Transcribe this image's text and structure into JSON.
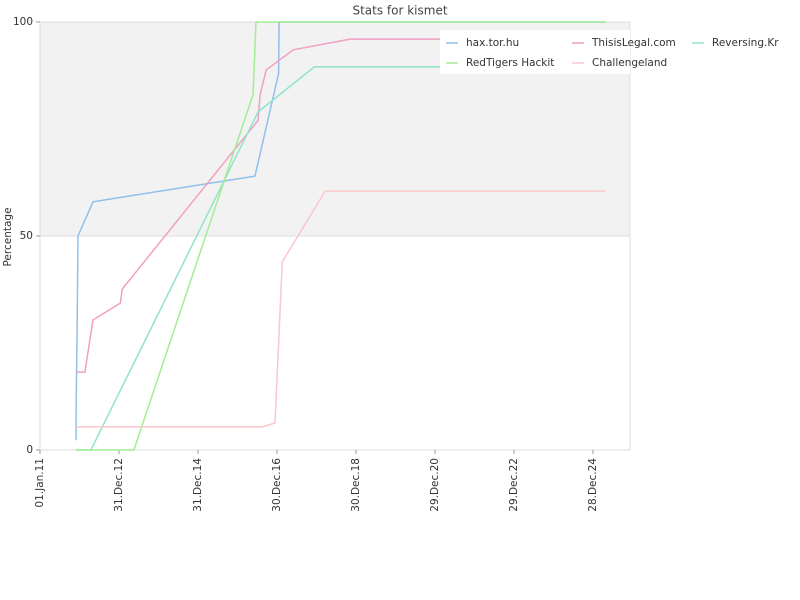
{
  "chart_data": {
    "type": "line",
    "title": "Stats for kismet",
    "y_label": "Percentage",
    "xlim": [
      "2011-01-01",
      "2025-12-05"
    ],
    "xticks": [
      {
        "value": "2011-01-01",
        "label": "01.Jan.11"
      },
      {
        "value": "2012-12-31",
        "label": "31.Dec.12"
      },
      {
        "value": "2014-12-31",
        "label": "31.Dec.14"
      },
      {
        "value": "2016-12-30",
        "label": "30.Dec.16"
      },
      {
        "value": "2018-12-30",
        "label": "30.Dec.18"
      },
      {
        "value": "2020-12-29",
        "label": "29.Dec.20"
      },
      {
        "value": "2022-12-29",
        "label": "29.Dec.22"
      },
      {
        "value": "2024-12-28",
        "label": "28.Dec.24"
      }
    ],
    "ylim": [
      0,
      100
    ],
    "yticks": [
      0,
      50,
      100
    ],
    "grid": true,
    "series": [
      {
        "name": "hax.tor.hu",
        "color": "#90c0ec",
        "x": [
          "2011-12-01",
          "2011-12-01",
          "2011-12-10",
          "2011-12-18",
          "2012-05-05",
          "2016-06-10",
          "2017-01-14",
          "2017-01-18",
          "2025-04-20"
        ],
        "values": [
          2.3,
          9.3,
          28,
          50,
          58,
          64,
          88,
          100,
          100
        ]
      },
      {
        "name": "ThisisLegal.com",
        "color": "#f0a0c4",
        "x": [
          "2011-12-01",
          "2012-02-20",
          "2012-05-05",
          "2013-01-12",
          "2013-01-30",
          "2016-07-08",
          "2016-07-27",
          "2016-09-21",
          "2017-05-30",
          "2018-11-06",
          "2025-04-20"
        ],
        "values": [
          18.2,
          18.2,
          30.4,
          34.3,
          37.6,
          77,
          83,
          88.8,
          93.5,
          96,
          96
        ]
      },
      {
        "name": "Reversing.Kr",
        "color": "#90e4cc",
        "x": [
          "2011-12-01",
          "2012-04-15",
          "2016-07-08",
          "2017-12-10",
          "2025-04-20"
        ],
        "values": [
          0,
          0,
          79,
          89.5,
          89.5
        ]
      },
      {
        "name": "RedTigers Hackit",
        "color": "#a4ec94",
        "x": [
          "2011-12-01",
          "2013-05-18",
          "2016-05-22",
          "2016-06-19",
          "2025-04-20"
        ],
        "values": [
          0,
          0,
          83,
          100,
          100
        ]
      },
      {
        "name": "Challengeland",
        "color": "#f8c8cc",
        "x": [
          "2011-12-01",
          "2016-08-14",
          "2016-12-12",
          "2017-02-17",
          "2018-03-21",
          "2025-04-20"
        ],
        "values": [
          5.4,
          5.4,
          6.3,
          44,
          60.5,
          60.5
        ]
      }
    ],
    "legend": "upper right"
  }
}
